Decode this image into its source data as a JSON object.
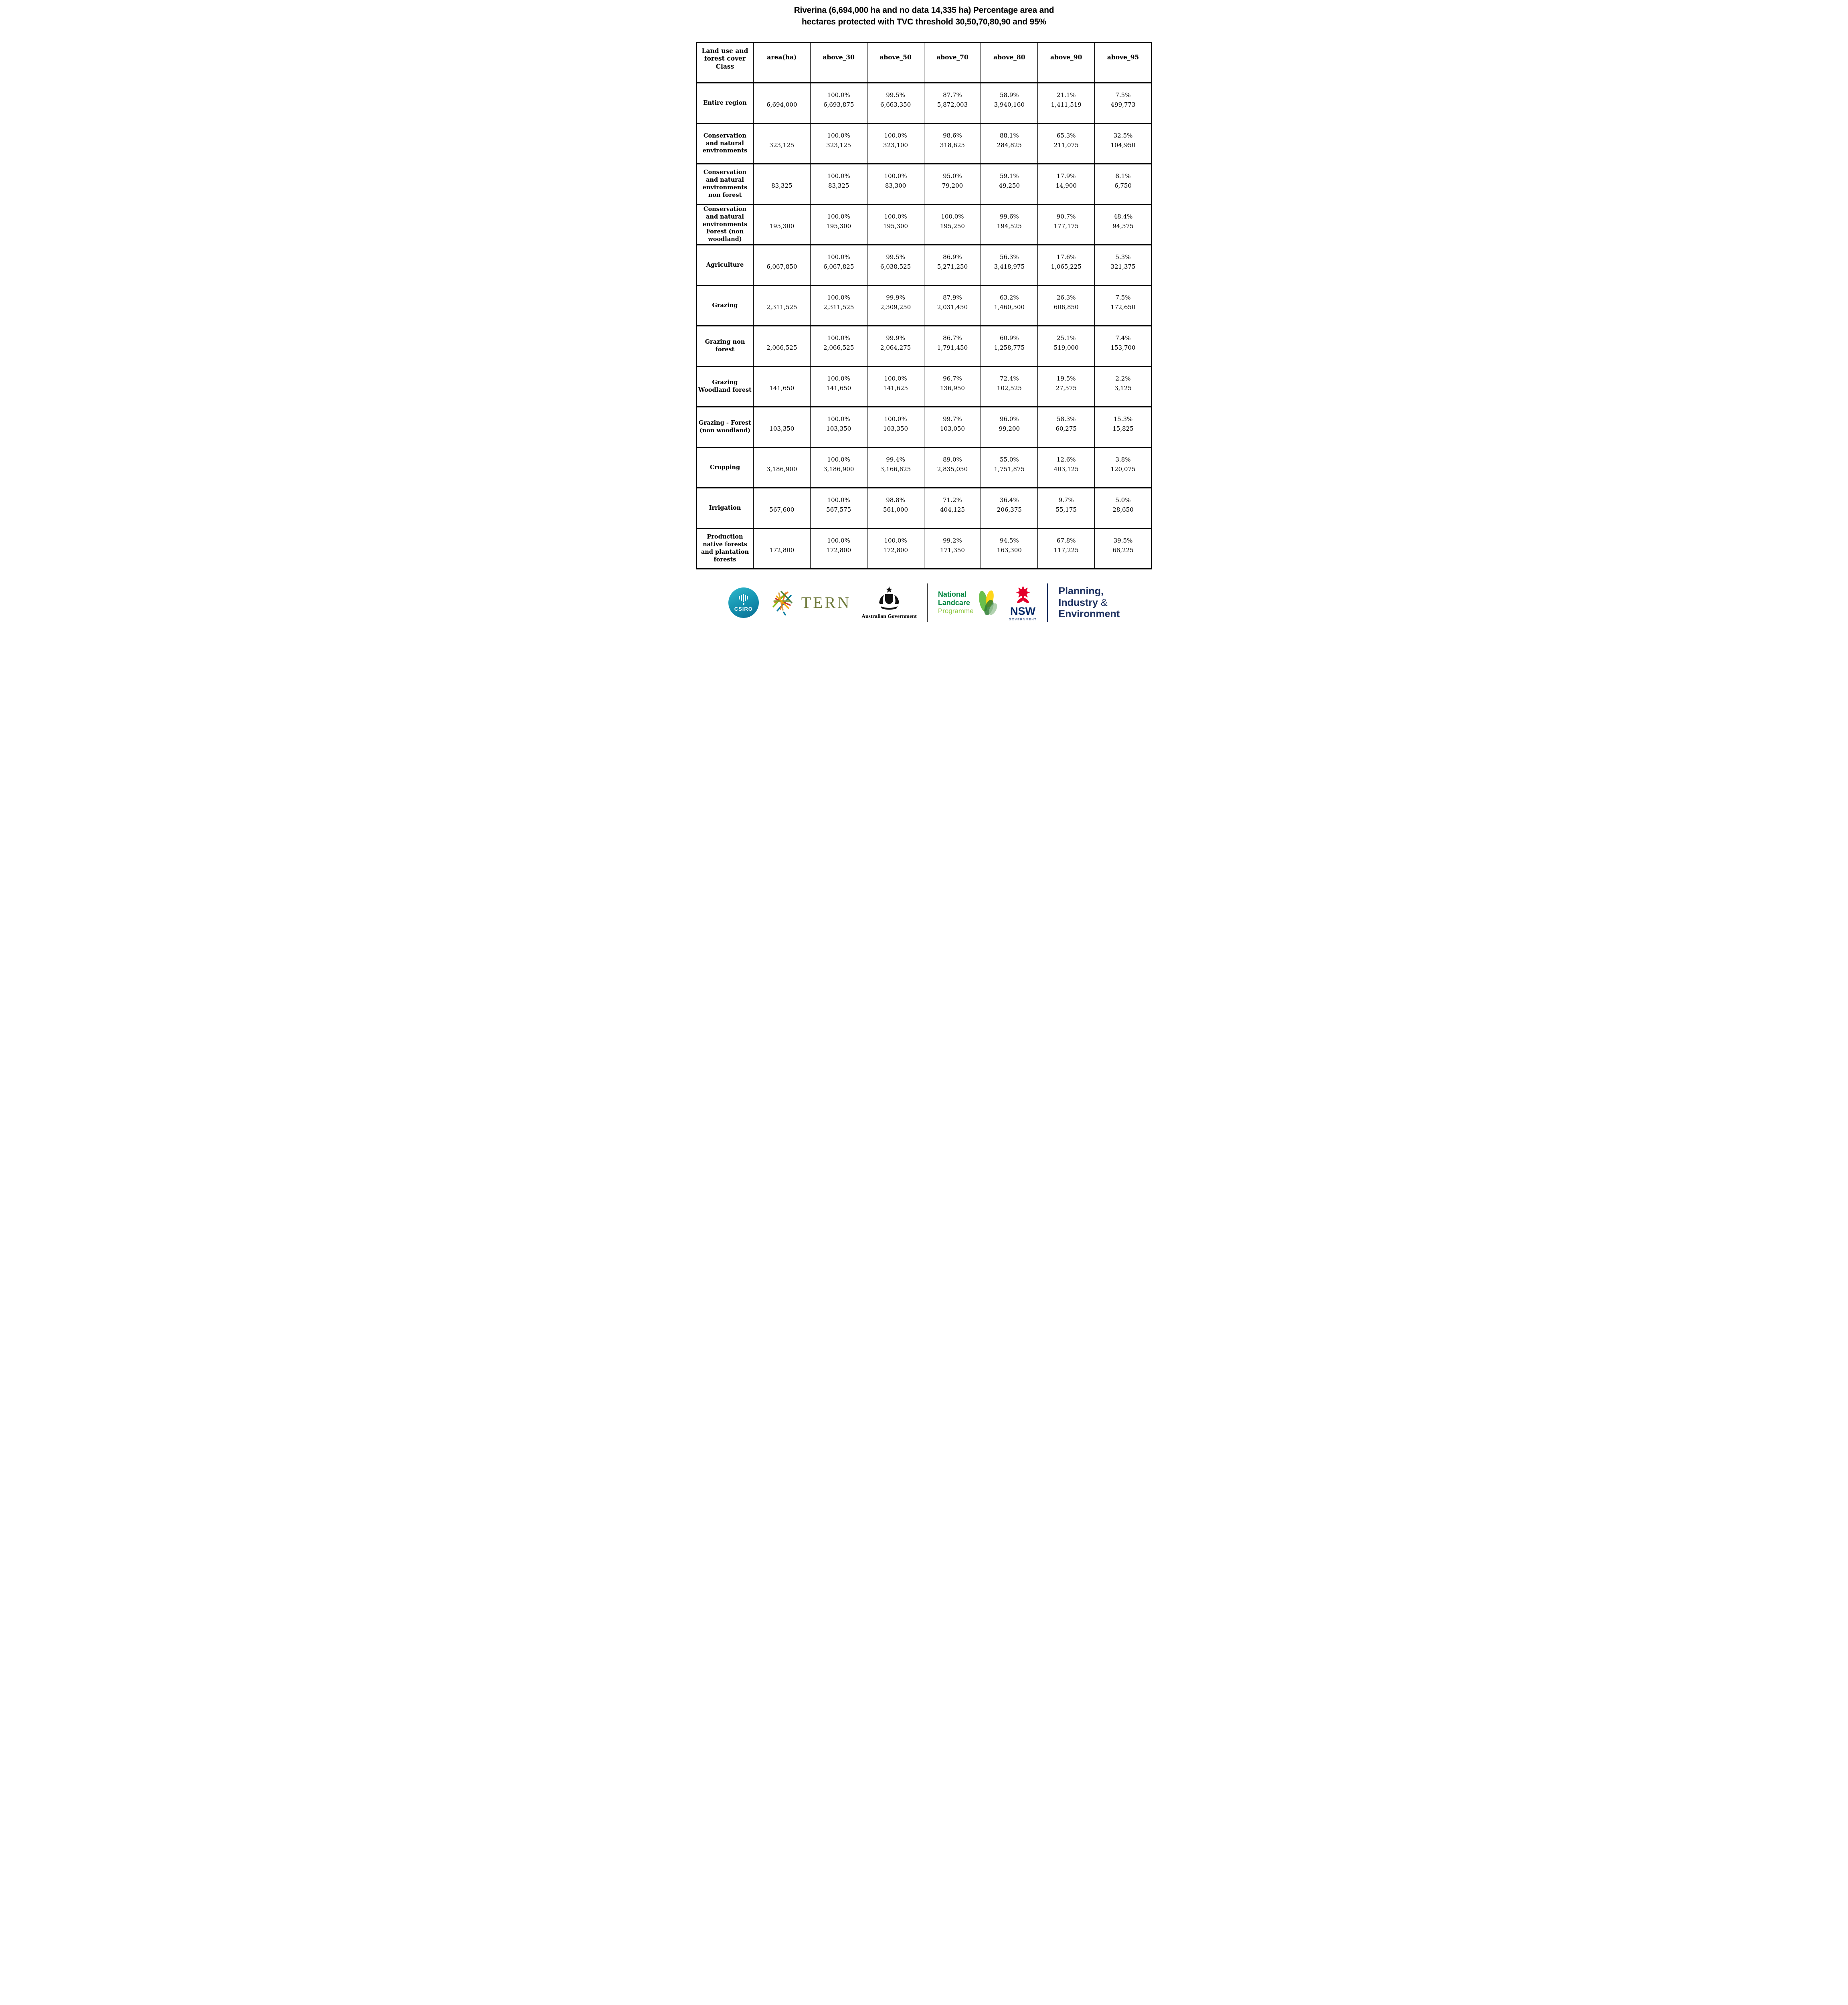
{
  "title": {
    "line1": "Riverina (6,694,000 ha and no data 14,335 ha) Percentage area and",
    "line2": "hectares protected with TVC threshold 30,50,70,80,90 and 95%"
  },
  "table": {
    "columns": [
      "Land use and forest cover Class",
      "area(ha)",
      "above_30",
      "above_50",
      "above_70",
      "above_80",
      "above_90",
      "above_95"
    ],
    "rows": [
      {
        "label": "Entire region",
        "area": "6,694,000",
        "values": [
          [
            "100.0%",
            "6,693,875"
          ],
          [
            "99.5%",
            "6,663,350"
          ],
          [
            "87.7%",
            "5,872,003"
          ],
          [
            "58.9%",
            "3,940,160"
          ],
          [
            "21.1%",
            "1,411,519"
          ],
          [
            "7.5%",
            "499,773"
          ]
        ]
      },
      {
        "label": "Conservation and natural environments",
        "area": "323,125",
        "values": [
          [
            "100.0%",
            "323,125"
          ],
          [
            "100.0%",
            "323,100"
          ],
          [
            "98.6%",
            "318,625"
          ],
          [
            "88.1%",
            "284,825"
          ],
          [
            "65.3%",
            "211,075"
          ],
          [
            "32.5%",
            "104,950"
          ]
        ]
      },
      {
        "label": "Conservation and natural environments non forest",
        "area": "83,325",
        "values": [
          [
            "100.0%",
            "83,325"
          ],
          [
            "100.0%",
            "83,300"
          ],
          [
            "95.0%",
            "79,200"
          ],
          [
            "59.1%",
            "49,250"
          ],
          [
            "17.9%",
            "14,900"
          ],
          [
            "8.1%",
            "6,750"
          ]
        ]
      },
      {
        "label": "Conservation and natural environments Forest (non woodland)",
        "area": "195,300",
        "values": [
          [
            "100.0%",
            "195,300"
          ],
          [
            "100.0%",
            "195,300"
          ],
          [
            "100.0%",
            "195,250"
          ],
          [
            "99.6%",
            "194,525"
          ],
          [
            "90.7%",
            "177,175"
          ],
          [
            "48.4%",
            "94,575"
          ]
        ]
      },
      {
        "label": "Agriculture",
        "area": "6,067,850",
        "values": [
          [
            "100.0%",
            "6,067,825"
          ],
          [
            "99.5%",
            "6,038,525"
          ],
          [
            "86.9%",
            "5,271,250"
          ],
          [
            "56.3%",
            "3,418,975"
          ],
          [
            "17.6%",
            "1,065,225"
          ],
          [
            "5.3%",
            "321,375"
          ]
        ]
      },
      {
        "label": "Grazing",
        "area": "2,311,525",
        "values": [
          [
            "100.0%",
            "2,311,525"
          ],
          [
            "99.9%",
            "2,309,250"
          ],
          [
            "87.9%",
            "2,031,450"
          ],
          [
            "63.2%",
            "1,460,500"
          ],
          [
            "26.3%",
            "606,850"
          ],
          [
            "7.5%",
            "172,650"
          ]
        ]
      },
      {
        "label": "Grazing non forest",
        "area": "2,066,525",
        "values": [
          [
            "100.0%",
            "2,066,525"
          ],
          [
            "99.9%",
            "2,064,275"
          ],
          [
            "86.7%",
            "1,791,450"
          ],
          [
            "60.9%",
            "1,258,775"
          ],
          [
            "25.1%",
            "519,000"
          ],
          [
            "7.4%",
            "153,700"
          ]
        ]
      },
      {
        "label": "Grazing Woodland forest",
        "area": "141,650",
        "values": [
          [
            "100.0%",
            "141,650"
          ],
          [
            "100.0%",
            "141,625"
          ],
          [
            "96.7%",
            "136,950"
          ],
          [
            "72.4%",
            "102,525"
          ],
          [
            "19.5%",
            "27,575"
          ],
          [
            "2.2%",
            "3,125"
          ]
        ]
      },
      {
        "label": "Grazing - Forest (non woodland)",
        "area": "103,350",
        "values": [
          [
            "100.0%",
            "103,350"
          ],
          [
            "100.0%",
            "103,350"
          ],
          [
            "99.7%",
            "103,050"
          ],
          [
            "96.0%",
            "99,200"
          ],
          [
            "58.3%",
            "60,275"
          ],
          [
            "15.3%",
            "15,825"
          ]
        ]
      },
      {
        "label": "Cropping",
        "area": "3,186,900",
        "values": [
          [
            "100.0%",
            "3,186,900"
          ],
          [
            "99.4%",
            "3,166,825"
          ],
          [
            "89.0%",
            "2,835,050"
          ],
          [
            "55.0%",
            "1,751,875"
          ],
          [
            "12.6%",
            "403,125"
          ],
          [
            "3.8%",
            "120,075"
          ]
        ]
      },
      {
        "label": "Irrigation",
        "area": "567,600",
        "values": [
          [
            "100.0%",
            "567,575"
          ],
          [
            "98.8%",
            "561,000"
          ],
          [
            "71.2%",
            "404,125"
          ],
          [
            "36.4%",
            "206,375"
          ],
          [
            "9.7%",
            "55,175"
          ],
          [
            "5.0%",
            "28,650"
          ]
        ]
      },
      {
        "label": "Production native forests and plantation forests",
        "area": "172,800",
        "values": [
          [
            "100.0%",
            "172,800"
          ],
          [
            "100.0%",
            "172,800"
          ],
          [
            "99.2%",
            "171,350"
          ],
          [
            "94.5%",
            "163,300"
          ],
          [
            "67.8%",
            "117,225"
          ],
          [
            "39.5%",
            "68,225"
          ]
        ]
      }
    ]
  },
  "footer": {
    "csiro": {
      "label": "CSIRO",
      "color": "#1390ae"
    },
    "tern": {
      "label": "TERN",
      "color": "#6f7a3c"
    },
    "aus_gov": {
      "label": "Australian Government"
    },
    "landcare": {
      "line1": "National",
      "line2": "Landcare",
      "line3": "Programme",
      "green": "#00853e",
      "light_green": "#8dc63f"
    },
    "nsw": {
      "label": "NSW",
      "sublabel": "GOVERNMENT",
      "red": "#e4002b",
      "navy": "#002664"
    },
    "pie": {
      "line1": "Planning,",
      "line2_word": "Industry",
      "line2_amp": "&",
      "line3": "Environment",
      "navy": "#1b2f5e"
    }
  }
}
